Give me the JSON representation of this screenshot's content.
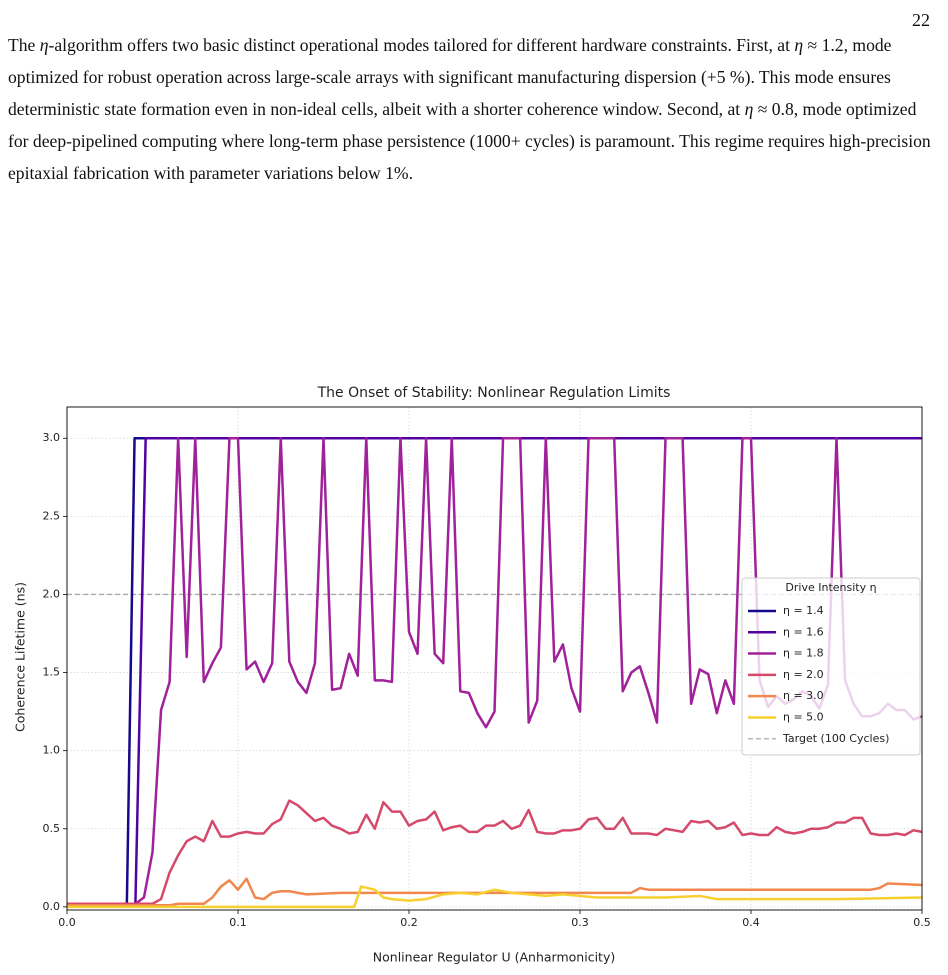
{
  "page_number": "22",
  "paragraph": [
    "The ",
    "η",
    "-algorithm offers two basic distinct operational modes tailored for different hardware constraints. First, at ",
    "η",
    " ≈ 1.2, mode optimized for robust operation across large-scale arrays with significant manufacturing dispersion (+5 %). This mode ensures deterministic state formation even in non-ideal cells, albeit with a shorter coherence window. Second, at ",
    "η",
    " ≈ 0.8, mode optimized for deep-pipelined computing where long-term phase persistence (1000+ cycles) is paramount. This regime requires high-precision epitaxial fabrication with parameter variations below 1%."
  ],
  "chart_data": {
    "type": "line",
    "title": "The Onset of Stability: Nonlinear Regulation Limits",
    "xlabel": "Nonlinear Regulator U (Anharmonicity)",
    "ylabel": "Coherence Lifetime (ns)",
    "xlim": [
      0,
      0.5
    ],
    "ylim": [
      -0.02,
      3.2
    ],
    "xticks": [
      {
        "value": 0,
        "label": "0.0"
      },
      0.1,
      0.2,
      0.3,
      0.4,
      0.5
    ],
    "yticks": [
      {
        "value": 0,
        "label": "0.0"
      },
      0.5,
      {
        "value": 1,
        "label": "1.0"
      },
      1.5,
      {
        "value": 2,
        "label": "2.0"
      },
      2.5,
      {
        "value": 3,
        "label": "3.0"
      }
    ],
    "grid": true,
    "legend": "center right",
    "legend_title": "Drive Intensity η",
    "x": [
      0,
      0.005,
      0.01,
      0.015,
      0.02,
      0.025,
      0.03,
      0.035,
      0.04,
      0.045,
      0.05,
      0.055,
      0.06,
      0.065,
      0.07,
      0.075,
      0.08,
      0.085,
      0.09,
      0.095,
      0.1,
      0.105,
      0.11,
      0.115,
      0.12,
      0.125,
      0.13,
      0.135,
      0.14,
      0.145,
      0.15,
      0.155,
      0.16,
      0.165,
      0.17,
      0.175,
      0.18,
      0.185,
      0.19,
      0.195,
      0.2,
      0.205,
      0.21,
      0.215,
      0.22,
      0.225,
      0.23,
      0.235,
      0.24,
      0.245,
      0.25,
      0.255,
      0.26,
      0.265,
      0.27,
      0.275,
      0.28,
      0.285,
      0.29,
      0.295,
      0.3,
      0.305,
      0.31,
      0.315,
      0.32,
      0.325,
      0.33,
      0.335,
      0.34,
      0.345,
      0.35,
      0.355,
      0.36,
      0.365,
      0.37,
      0.375,
      0.38,
      0.385,
      0.39,
      0.395,
      0.4,
      0.405,
      0.41,
      0.415,
      0.42,
      0.425,
      0.43,
      0.435,
      0.44,
      0.445,
      0.45,
      0.455,
      0.46,
      0.465,
      0.47,
      0.475,
      0.48,
      0.485,
      0.49,
      0.495,
      0.5
    ],
    "series": [
      {
        "name": "η = 1.4",
        "color": "#160a8a",
        "x": [
          0,
          0.035,
          0.0395,
          0.5
        ],
        "values": [
          0.02,
          0.02,
          3.0,
          3.0
        ]
      },
      {
        "name": "η = 1.6",
        "color": "#5202a0",
        "x": [
          0,
          0.04,
          0.046,
          0.5
        ],
        "values": [
          0.02,
          0.02,
          3.0,
          3.0
        ]
      },
      {
        "name": "η = 1.8",
        "color": "#a0219a",
        "values": [
          0.02,
          0.02,
          0.02,
          0.02,
          0.02,
          0.02,
          0.02,
          0.02,
          0.02,
          0.06,
          0.35,
          1.26,
          1.44,
          3.0,
          1.6,
          3.0,
          1.44,
          1.56,
          1.66,
          3.0,
          3.0,
          1.52,
          1.57,
          1.44,
          1.56,
          3.0,
          1.57,
          1.44,
          1.37,
          1.56,
          3.0,
          1.39,
          1.4,
          1.62,
          1.48,
          3.0,
          1.45,
          1.45,
          1.44,
          3.0,
          1.76,
          1.62,
          3.0,
          1.62,
          1.56,
          3.0,
          1.38,
          1.37,
          1.24,
          1.15,
          1.25,
          3.0,
          3.0,
          3.0,
          1.18,
          1.32,
          3.0,
          1.57,
          1.68,
          1.4,
          1.25,
          3.0,
          3.0,
          3.0,
          3.0,
          1.38,
          1.5,
          1.54,
          1.37,
          1.18,
          3.0,
          3.0,
          3.0,
          1.3,
          1.52,
          1.49,
          1.24,
          1.45,
          1.3,
          3.0,
          3.0,
          1.45,
          1.28,
          1.35,
          1.3,
          1.33,
          1.38,
          1.35,
          1.27,
          1.42,
          3.0,
          1.45,
          1.3,
          1.22,
          1.22,
          1.24,
          1.3,
          1.26,
          1.26,
          1.2,
          1.22
        ]
      },
      {
        "name": "η = 2.0",
        "color": "#d54a6b",
        "values": [
          0.02,
          0.02,
          0.02,
          0.02,
          0.02,
          0.02,
          0.02,
          0.02,
          0.02,
          0.02,
          0.02,
          0.05,
          0.22,
          0.33,
          0.42,
          0.45,
          0.42,
          0.55,
          0.45,
          0.45,
          0.47,
          0.48,
          0.47,
          0.47,
          0.53,
          0.56,
          0.68,
          0.65,
          0.6,
          0.55,
          0.57,
          0.52,
          0.5,
          0.47,
          0.48,
          0.59,
          0.5,
          0.67,
          0.61,
          0.61,
          0.52,
          0.55,
          0.56,
          0.61,
          0.49,
          0.51,
          0.52,
          0.48,
          0.48,
          0.52,
          0.52,
          0.55,
          0.5,
          0.52,
          0.62,
          0.48,
          0.47,
          0.47,
          0.49,
          0.49,
          0.5,
          0.56,
          0.57,
          0.5,
          0.5,
          0.57,
          0.47,
          0.47,
          0.47,
          0.46,
          0.5,
          0.49,
          0.48,
          0.55,
          0.54,
          0.55,
          0.5,
          0.51,
          0.54,
          0.46,
          0.47,
          0.46,
          0.46,
          0.51,
          0.48,
          0.47,
          0.48,
          0.5,
          0.5,
          0.51,
          0.54,
          0.54,
          0.57,
          0.57,
          0.47,
          0.46,
          0.46,
          0.47,
          0.46,
          0.49,
          0.48
        ]
      },
      {
        "name": "η = 3.0",
        "color": "#f0874c",
        "x": [
          0,
          0.06,
          0.065,
          0.08,
          0.085,
          0.09,
          0.095,
          0.1,
          0.105,
          0.11,
          0.115,
          0.12,
          0.125,
          0.13,
          0.14,
          0.16,
          0.2,
          0.33,
          0.335,
          0.34,
          0.47,
          0.475,
          0.48,
          0.5
        ],
        "values": [
          0.01,
          0.01,
          0.02,
          0.02,
          0.06,
          0.13,
          0.17,
          0.11,
          0.18,
          0.06,
          0.05,
          0.09,
          0.1,
          0.1,
          0.08,
          0.09,
          0.09,
          0.09,
          0.12,
          0.11,
          0.11,
          0.12,
          0.15,
          0.14
        ]
      },
      {
        "name": "η = 5.0",
        "color": "#f8cf30",
        "x": [
          0,
          0.168,
          0.172,
          0.18,
          0.185,
          0.19,
          0.2,
          0.21,
          0.22,
          0.23,
          0.24,
          0.25,
          0.26,
          0.27,
          0.28,
          0.29,
          0.3,
          0.31,
          0.35,
          0.37,
          0.38,
          0.45,
          0.5
        ],
        "values": [
          0.0,
          0.0,
          0.13,
          0.11,
          0.06,
          0.05,
          0.04,
          0.05,
          0.08,
          0.09,
          0.08,
          0.11,
          0.09,
          0.08,
          0.07,
          0.08,
          0.07,
          0.06,
          0.06,
          0.07,
          0.05,
          0.05,
          0.06
        ]
      }
    ],
    "hlines": [
      {
        "name": "Target (100 Cycles)",
        "value": 2.0,
        "color": "#aaaaaa"
      }
    ]
  }
}
